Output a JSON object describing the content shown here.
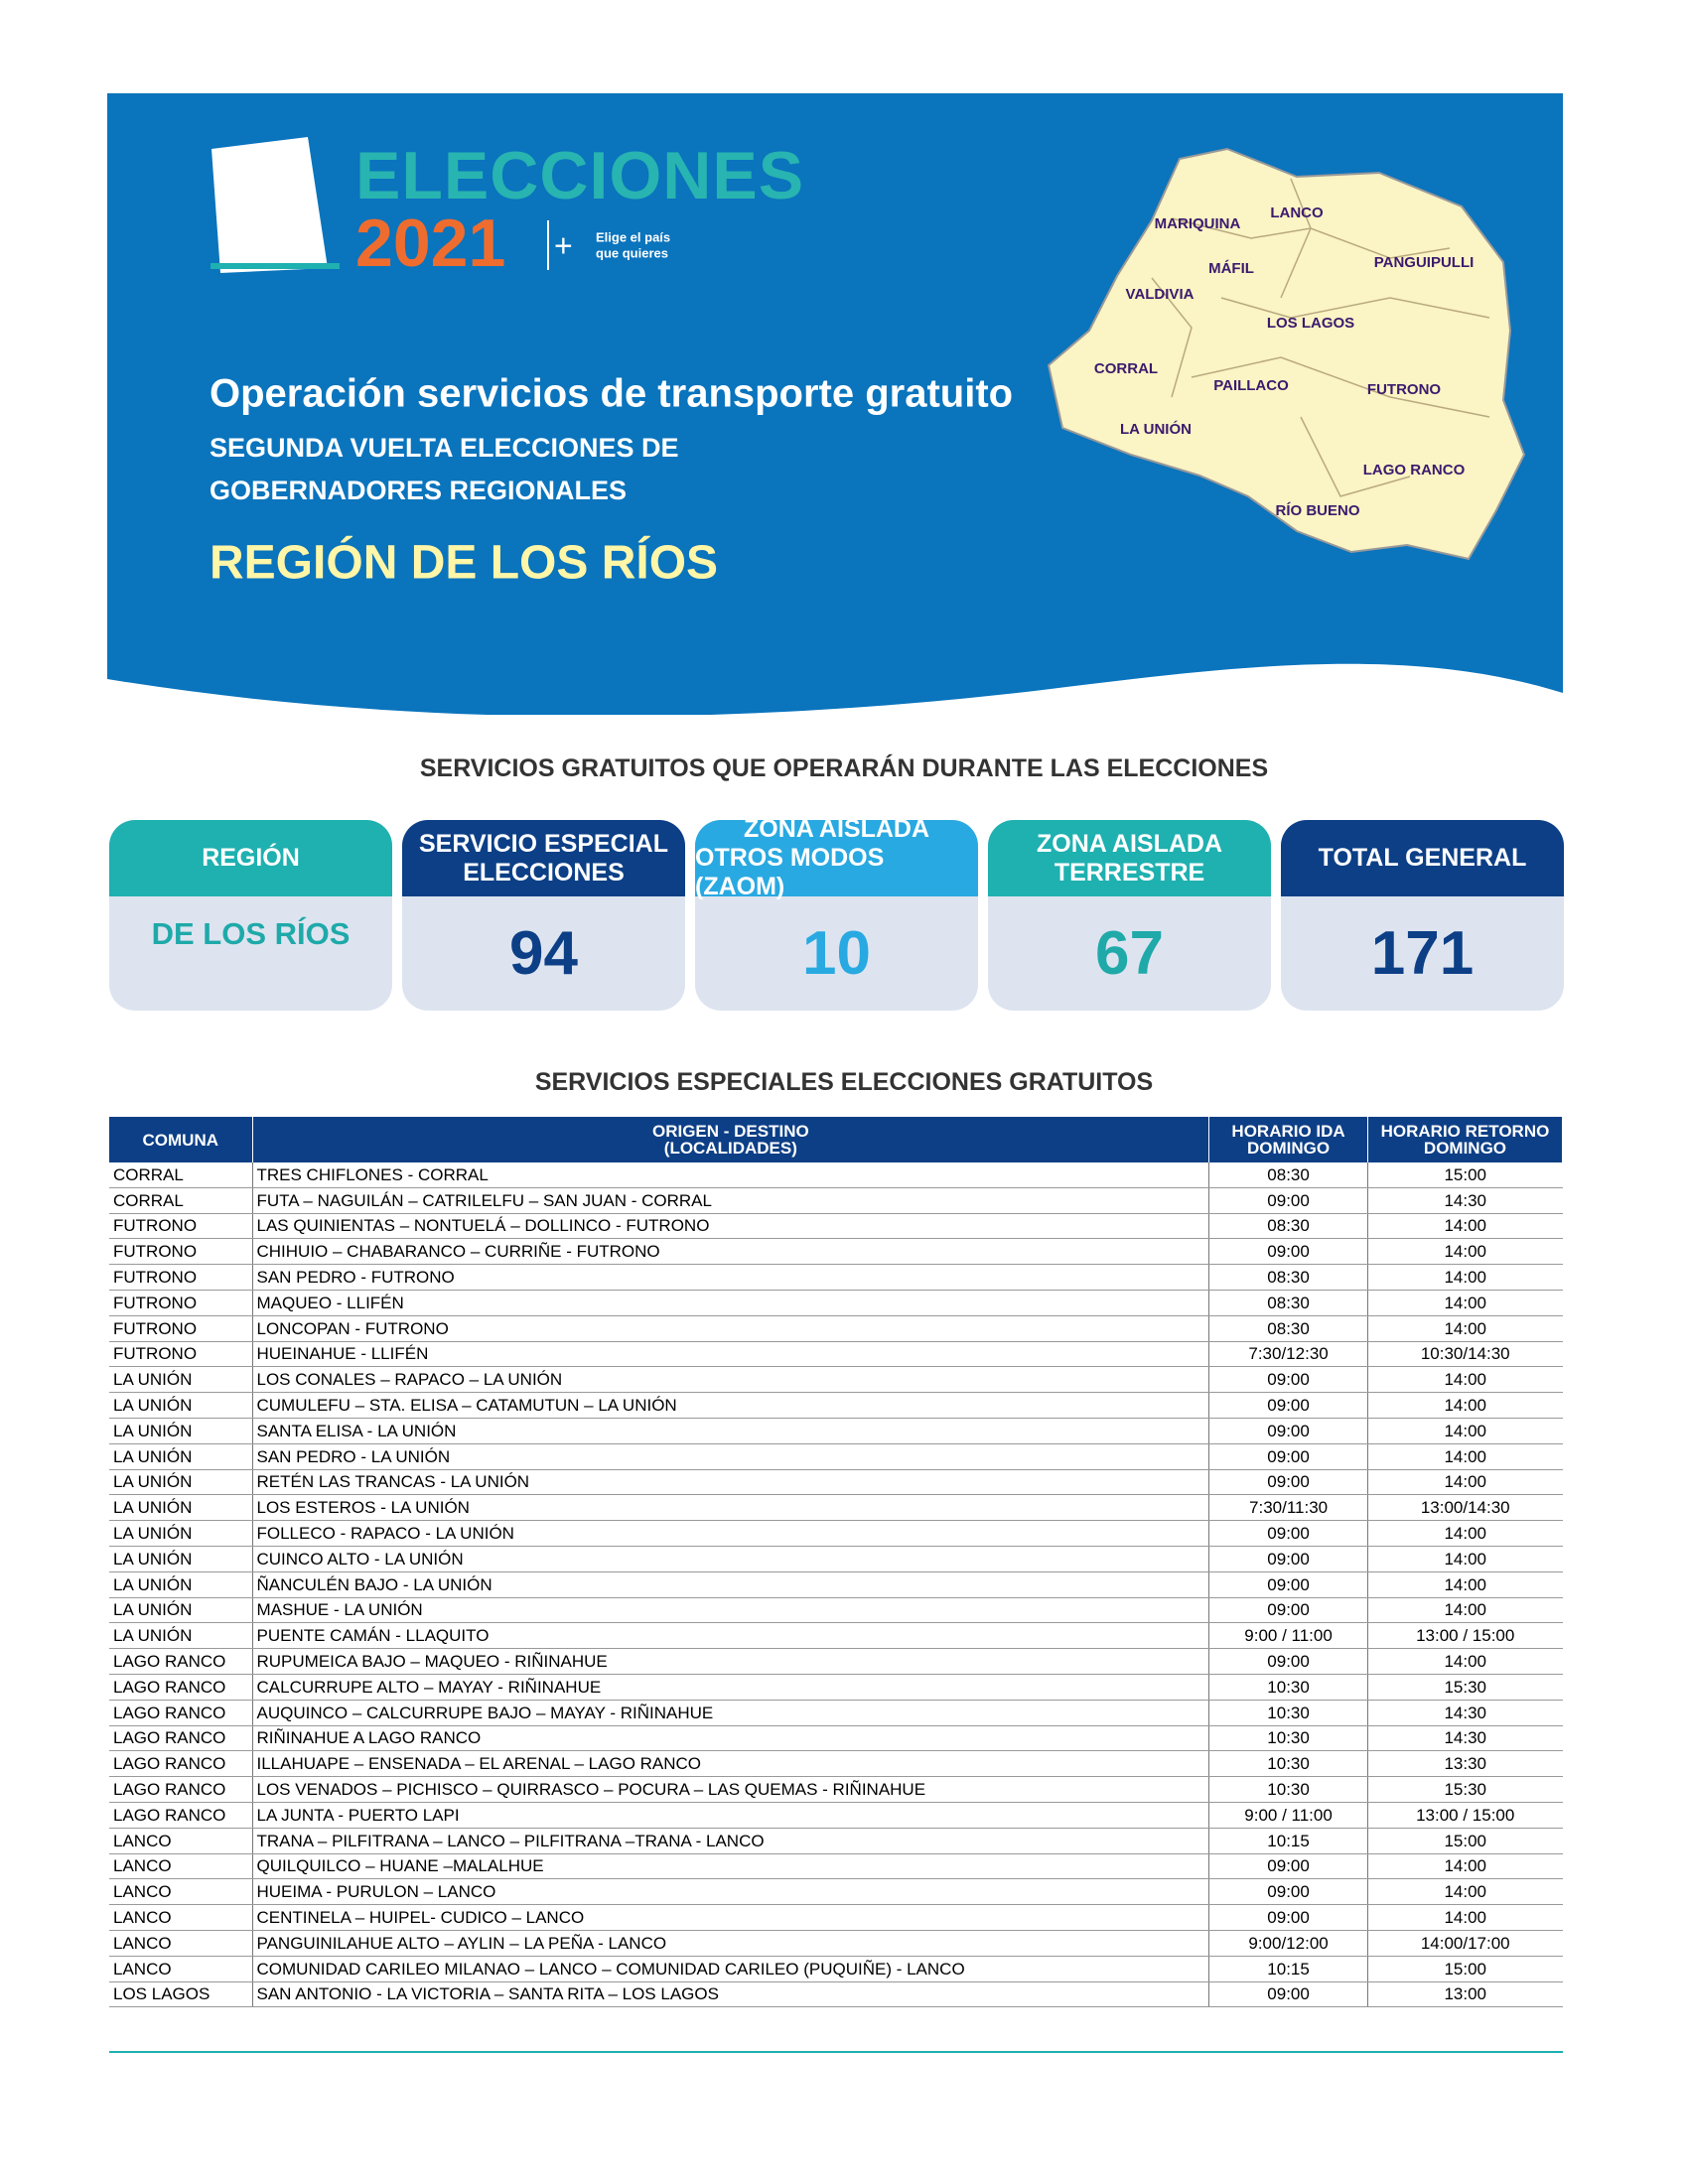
{
  "header": {
    "logo": {
      "word": "ELECCIONES",
      "year": "2021",
      "plus": "+",
      "slogan": [
        "Elige el país",
        "que quieres"
      ]
    },
    "title": "Operación servicios de transporte gratuito",
    "subtitle": [
      "SEGUNDA VUELTA ELECCIONES DE",
      "GOBERNADORES REGIONALES"
    ],
    "region": "REGIÓN DE LOS RÍOS",
    "map_labels": [
      "MARIQUINA",
      "LANCO",
      "MÁFIL",
      "PANGUIPULLI",
      "VALDIVIA",
      "LOS LAGOS",
      "CORRAL",
      "PAILLACO",
      "FUTRONO",
      "LA UNIÓN",
      "LAGO RANCO",
      "RÍO BUENO"
    ]
  },
  "summary": {
    "title": "SERVICIOS GRATUITOS QUE OPERARÁN DURANTE LAS ELECCIONES",
    "cards": [
      {
        "header": [
          "REGIÓN"
        ],
        "value": "DE LOS RÍOS"
      },
      {
        "header": [
          "SERVICIO ESPECIAL",
          "ELECCIONES"
        ],
        "value": "94"
      },
      {
        "header": [
          "ZONA AISLADA",
          "OTROS MODOS (ZAOM)"
        ],
        "value": "10"
      },
      {
        "header": [
          "ZONA AISLADA",
          "TERRESTRE"
        ],
        "value": "67"
      },
      {
        "header": [
          "TOTAL GENERAL"
        ],
        "value": "171"
      }
    ]
  },
  "table": {
    "title": "SERVICIOS ESPECIALES ELECCIONES GRATUITOS",
    "columns": [
      [
        "COMUNA"
      ],
      [
        "ORIGEN - DESTINO",
        "(LOCALIDADES)"
      ],
      [
        "HORARIO IDA",
        "DOMINGO"
      ],
      [
        "HORARIO RETORNO",
        "DOMINGO"
      ]
    ],
    "rows": [
      [
        "CORRAL",
        "TRES CHIFLONES - CORRAL",
        "08:30",
        "15:00"
      ],
      [
        "CORRAL",
        "FUTA – NAGUILÁN – CATRILELFU – SAN JUAN - CORRAL",
        "09:00",
        "14:30"
      ],
      [
        "FUTRONO",
        "LAS QUINIENTAS – NONTUELÁ – DOLLINCO - FUTRONO",
        "08:30",
        "14:00"
      ],
      [
        "FUTRONO",
        "CHIHUIO – CHABARANCO – CURRIÑE - FUTRONO",
        "09:00",
        "14:00"
      ],
      [
        "FUTRONO",
        "SAN PEDRO - FUTRONO",
        "08:30",
        "14:00"
      ],
      [
        "FUTRONO",
        "MAQUEO - LLIFÉN",
        "08:30",
        "14:00"
      ],
      [
        "FUTRONO",
        "LONCOPAN - FUTRONO",
        "08:30",
        "14:00"
      ],
      [
        "FUTRONO",
        "HUEINAHUE - LLIFÉN",
        "7:30/12:30",
        "10:30/14:30"
      ],
      [
        "LA UNIÓN",
        "LOS CONALES – RAPACO – LA UNIÓN",
        "09:00",
        "14:00"
      ],
      [
        "LA UNIÓN",
        "CUMULEFU – STA. ELISA – CATAMUTUN – LA UNIÓN",
        "09:00",
        "14:00"
      ],
      [
        "LA UNIÓN",
        "SANTA ELISA - LA UNIÓN",
        "09:00",
        "14:00"
      ],
      [
        "LA UNIÓN",
        "SAN PEDRO - LA UNIÓN",
        "09:00",
        "14:00"
      ],
      [
        "LA UNIÓN",
        "RETÉN LAS TRANCAS - LA UNIÓN",
        "09:00",
        "14:00"
      ],
      [
        "LA UNIÓN",
        "LOS ESTEROS - LA UNIÓN",
        "7:30/11:30",
        "13:00/14:30"
      ],
      [
        "LA UNIÓN",
        "FOLLECO - RAPACO - LA UNIÓN",
        "09:00",
        "14:00"
      ],
      [
        "LA UNIÓN",
        "CUINCO ALTO - LA UNIÓN",
        "09:00",
        "14:00"
      ],
      [
        "LA UNIÓN",
        "ÑANCULÉN BAJO - LA UNIÓN",
        "09:00",
        "14:00"
      ],
      [
        "LA UNIÓN",
        "MASHUE - LA UNIÓN",
        "09:00",
        "14:00"
      ],
      [
        "LA UNIÓN",
        "PUENTE CAMÁN - LLAQUITO",
        "9:00 / 11:00",
        "13:00 / 15:00"
      ],
      [
        "LAGO RANCO",
        "RUPUMEICA BAJO – MAQUEO - RIÑINAHUE",
        "09:00",
        "14:00"
      ],
      [
        "LAGO RANCO",
        "CALCURRUPE ALTO – MAYAY - RIÑINAHUE",
        "10:30",
        "15:30"
      ],
      [
        "LAGO RANCO",
        "AUQUINCO – CALCURRUPE BAJO – MAYAY - RIÑINAHUE",
        "10:30",
        "14:30"
      ],
      [
        "LAGO RANCO",
        "RIÑINAHUE A LAGO RANCO",
        "10:30",
        "14:30"
      ],
      [
        "LAGO RANCO",
        "ILLAHUAPE – ENSENADA – EL ARENAL – LAGO RANCO",
        "10:30",
        "13:30"
      ],
      [
        "LAGO RANCO",
        "LOS VENADOS – PICHISCO – QUIRRASCO – POCURA – LAS QUEMAS - RIÑINAHUE",
        "10:30",
        "15:30"
      ],
      [
        "LAGO RANCO",
        "LA JUNTA - PUERTO LAPI",
        "9:00 / 11:00",
        "13:00 / 15:00"
      ],
      [
        "LANCO",
        "TRANA – PILFITRANA – LANCO – PILFITRANA –TRANA - LANCO",
        "10:15",
        "15:00"
      ],
      [
        "LANCO",
        "QUILQUILCO – HUANE –MALALHUE",
        "09:00",
        "14:00"
      ],
      [
        "LANCO",
        "HUEIMA  - PURULON – LANCO",
        "09:00",
        "14:00"
      ],
      [
        "LANCO",
        "CENTINELA – HUIPEL- CUDICO – LANCO",
        "09:00",
        "14:00"
      ],
      [
        "LANCO",
        "PANGUINILAHUE ALTO – AYLIN – LA PEÑA - LANCO",
        "9:00/12:00",
        "14:00/17:00"
      ],
      [
        "LANCO",
        "COMUNIDAD CARILEO MILANAO – LANCO – COMUNIDAD CARILEO (PUQUIÑE) - LANCO",
        "10:15",
        "15:00"
      ],
      [
        "LOS LAGOS",
        "SAN ANTONIO - LA VICTORIA –  SANTA RITA – LOS LAGOS",
        "09:00",
        "13:00"
      ]
    ]
  }
}
